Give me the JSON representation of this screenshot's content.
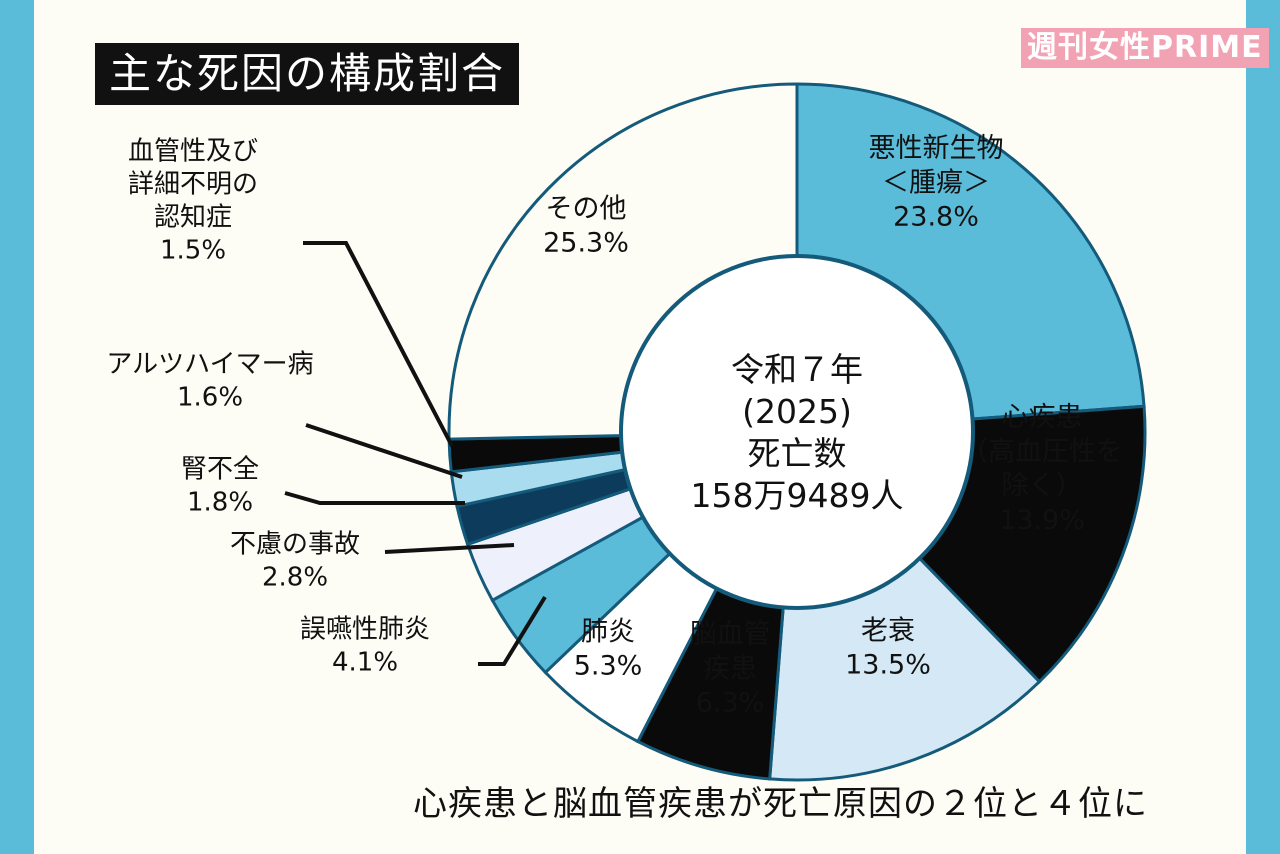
{
  "title": "主な死因の構成割合",
  "logo": "週刊女性PRIME",
  "caption": "心疾患と脳血管疾患が死亡原因の２位と４位に",
  "center_label": [
    "令和７年",
    "(2025)",
    "死亡数",
    "158万9489人"
  ],
  "colors": {
    "page_border": "#5bbcd9",
    "background": "#fdfdf5",
    "teal": "#5bbcd9",
    "black": "#0a0a0a",
    "light_blue": "#d4e9f5",
    "white": "#ffffff",
    "navy": "#0d3b5c",
    "lavender": "#eef0fb",
    "outline": "#145a7a"
  },
  "chart_data": {
    "type": "pie",
    "title": "主な死因の構成割合",
    "unit": "%",
    "slices": [
      {
        "label": "悪性新生物<腫瘍>",
        "value": 23.8,
        "value_text": "23.8%",
        "lines": [
          "悪性新生物",
          "＜腫瘍＞",
          "23.8%"
        ],
        "color": "#5bbcd9",
        "text_color": "#111"
      },
      {
        "label": "心疾患(高血圧性を除く)",
        "value": 13.9,
        "value_text": "13.9%",
        "lines": [
          "心疾患",
          "（高血圧性を",
          "除く）",
          "13.9%"
        ],
        "color": "#0a0a0a",
        "text_color": "#ffffff"
      },
      {
        "label": "老衰",
        "value": 13.5,
        "value_text": "13.5%",
        "lines": [
          "老衰",
          "13.5%"
        ],
        "color": "#d4e9f5",
        "text_color": "#111"
      },
      {
        "label": "脳血管疾患",
        "value": 6.3,
        "value_text": "6.3%",
        "lines": [
          "脳血管",
          "疾患",
          "6.3%"
        ],
        "color": "#0a0a0a",
        "text_color": "#ffffff"
      },
      {
        "label": "肺炎",
        "value": 5.3,
        "value_text": "5.3%",
        "lines": [
          "肺炎",
          "5.3%"
        ],
        "color": "#ffffff",
        "text_color": "#111"
      },
      {
        "label": "誤嚥性肺炎",
        "value": 4.1,
        "value_text": "4.1%",
        "lines": [
          "誤嚥性肺炎",
          "4.1%"
        ],
        "color": "#5bbcd9",
        "text_color": "#111"
      },
      {
        "label": "不慮の事故",
        "value": 2.8,
        "value_text": "2.8%",
        "lines": [
          "不慮の事故",
          "2.8%"
        ],
        "color": "#eef0fb",
        "text_color": "#111"
      },
      {
        "label": "腎不全",
        "value": 1.8,
        "value_text": "1.8%",
        "lines": [
          "腎不全",
          "1.8%"
        ],
        "color": "#0d3b5c",
        "text_color": "#111"
      },
      {
        "label": "アルツハイマー病",
        "value": 1.6,
        "value_text": "1.6%",
        "lines": [
          "アルツハイマー病",
          "1.6%"
        ],
        "color": "#a9dcee",
        "text_color": "#111"
      },
      {
        "label": "血管性及び詳細不明の認知症",
        "value": 1.5,
        "value_text": "1.5%",
        "lines": [
          "血管性及び",
          "詳細不明の",
          "認知症",
          "1.5%"
        ],
        "color": "#0a0a0a",
        "text_color": "#111"
      },
      {
        "label": "その他",
        "value": 25.3,
        "value_text": "25.3%",
        "lines": [
          "その他",
          "25.3%"
        ],
        "color": "#fdfdf5",
        "text_color": "#111"
      }
    ]
  }
}
